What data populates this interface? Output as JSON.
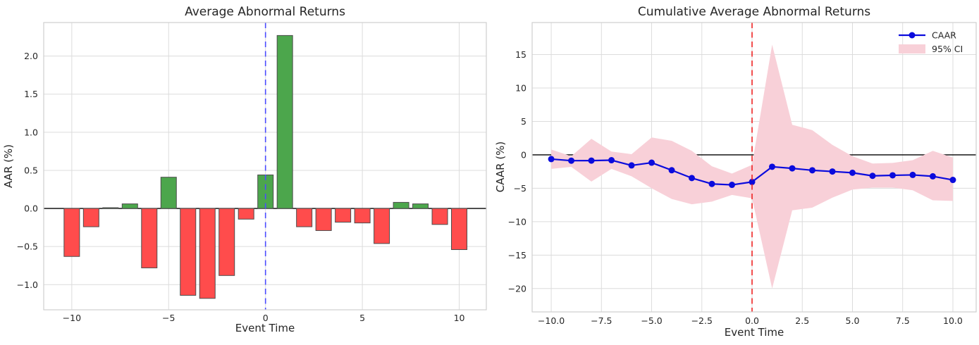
{
  "figure": {
    "background": "#ffffff",
    "text_color": "#262626",
    "grid_color": "#dcdcdc",
    "spine_color": "#cfcfcf"
  },
  "chart_data": [
    {
      "type": "bar",
      "title": "Average Abnormal Returns",
      "xlabel": "Event Time",
      "ylabel": "AAR (%)",
      "x": [
        -10,
        -9,
        -8,
        -7,
        -6,
        -5,
        -4,
        -3,
        -2,
        -1,
        0,
        1,
        2,
        3,
        4,
        5,
        6,
        7,
        8,
        9,
        10
      ],
      "values": [
        -0.63,
        -0.24,
        0.01,
        0.06,
        -0.78,
        0.41,
        -1.14,
        -1.18,
        -0.88,
        -0.14,
        0.44,
        2.27,
        -0.24,
        -0.29,
        -0.18,
        -0.19,
        -0.46,
        0.08,
        0.06,
        -0.21,
        -0.54
      ],
      "positive_color": "#4ca64c",
      "negative_color": "#ff4c4c",
      "bar_edge_color": "#4c4c4c",
      "zero_line_color": "#000000",
      "event_line": {
        "x": 0,
        "color": "#4c4cff",
        "style": "dashed"
      },
      "grid": true,
      "legend_position": "none",
      "xlim": [
        -11.45,
        11.4
      ],
      "ylim": [
        -1.33,
        2.44
      ],
      "xticks": {
        "values": [
          -10,
          -5,
          0,
          5,
          10
        ],
        "labels": [
          "−10",
          "−5",
          "0",
          "5",
          "10"
        ]
      },
      "yticks": {
        "values": [
          2.0,
          1.5,
          1.0,
          0.5,
          0.0,
          -0.5,
          -1.0
        ],
        "labels": [
          "2.0",
          "1.5",
          "1.0",
          "0.5",
          "0.0",
          "−0.5",
          "−1.0"
        ]
      }
    },
    {
      "type": "line",
      "title": "Cumulative Average Abnormal Returns",
      "xlabel": "Event Time",
      "ylabel": "CAAR (%)",
      "x": [
        -10,
        -9,
        -8,
        -7,
        -6,
        -5,
        -4,
        -3,
        -2,
        -1,
        0,
        1,
        2,
        3,
        4,
        5,
        6,
        7,
        8,
        9,
        10
      ],
      "series": [
        {
          "name": "CAAR",
          "color": "#0b0bdd",
          "marker": "circle",
          "values": [
            -0.63,
            -0.87,
            -0.86,
            -0.8,
            -1.58,
            -1.17,
            -2.3,
            -3.47,
            -4.35,
            -4.49,
            -4.05,
            -1.78,
            -2.02,
            -2.31,
            -2.49,
            -2.68,
            -3.14,
            -3.06,
            -3.0,
            -3.21,
            -3.75
          ]
        }
      ],
      "band": {
        "name": "95% CI",
        "color": "#f8d0d8",
        "upper": [
          0.8,
          -0.2,
          2.4,
          0.5,
          0.1,
          2.6,
          2.1,
          0.6,
          -1.7,
          -2.8,
          -1.5,
          16.5,
          4.5,
          3.7,
          1.5,
          -0.2,
          -1.3,
          -1.2,
          -0.8,
          0.6,
          -0.4
        ],
        "lower": [
          -2.1,
          -1.8,
          -4.0,
          -2.1,
          -3.2,
          -5.0,
          -6.6,
          -7.4,
          -7.0,
          -6.0,
          -6.5,
          -20.0,
          -8.3,
          -7.9,
          -6.4,
          -5.2,
          -4.9,
          -4.9,
          -5.3,
          -6.8,
          -6.9
        ]
      },
      "legend": {
        "position": "upper right",
        "entries": [
          "CAAR",
          "95% CI"
        ]
      },
      "zero_line_color": "#000000",
      "event_line": {
        "x": 0,
        "color": "#ee2222",
        "style": "dashed"
      },
      "grid": true,
      "xlim": [
        -10.95,
        11.16
      ],
      "ylim": [
        -23.5,
        19.8
      ],
      "xticks": {
        "values": [
          -10,
          -7.5,
          -5,
          -2.5,
          0,
          2.5,
          5,
          7.5,
          10
        ],
        "labels": [
          "−10.0",
          "−7.5",
          "−5.0",
          "−2.5",
          "0.0",
          "2.5",
          "5.0",
          "7.5",
          "10.0"
        ]
      },
      "yticks": {
        "values": [
          15,
          10,
          5,
          0,
          -5,
          -10,
          -15,
          -20
        ],
        "labels": [
          "15",
          "10",
          "5",
          "0",
          "−5",
          "−10",
          "−15",
          "−20"
        ]
      }
    }
  ]
}
